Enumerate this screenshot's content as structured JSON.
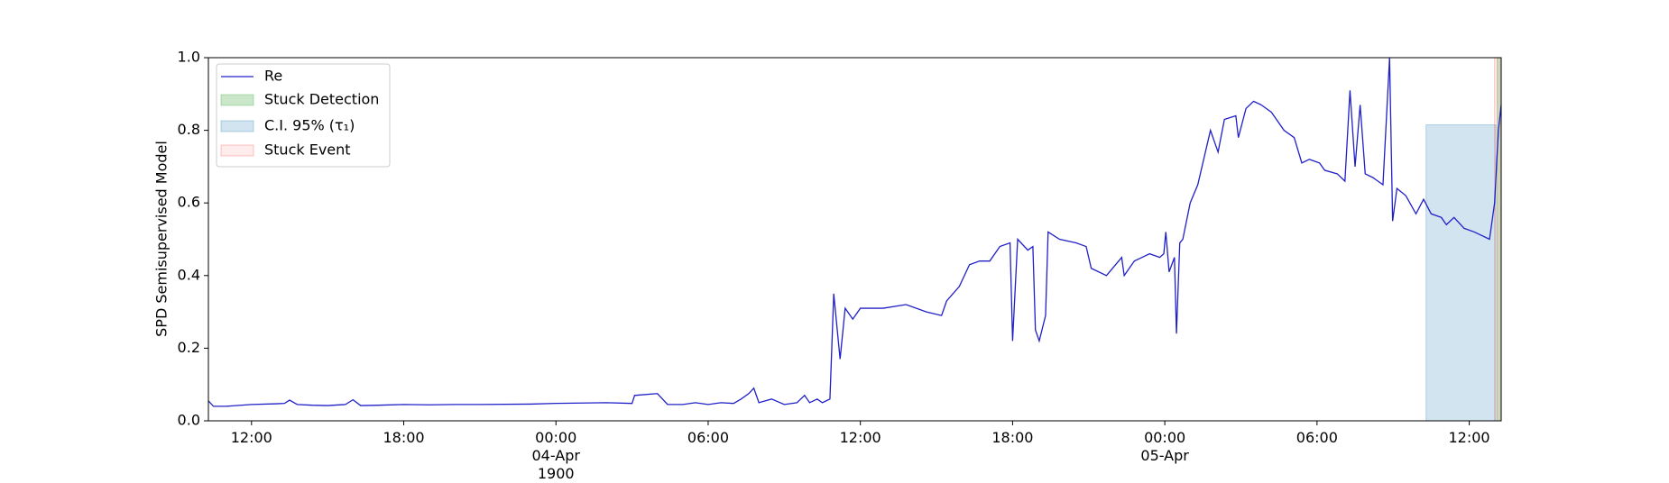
{
  "chart_data": {
    "type": "line",
    "ylabel": "SPD Semisupervised Model",
    "xlim": [
      -13.7,
      37.26
    ],
    "xticks": [
      {
        "value": -12,
        "label": "12:00"
      },
      {
        "value": -6,
        "label": "18:00"
      },
      {
        "value": 0,
        "label": "00:00\n04-Apr\n1900"
      },
      {
        "value": 6,
        "label": "06:00"
      },
      {
        "value": 12,
        "label": "12:00"
      },
      {
        "value": 18,
        "label": "18:00"
      },
      {
        "value": 24,
        "label": "00:00\n05-Apr"
      },
      {
        "value": 30,
        "label": "06:00"
      },
      {
        "value": 36,
        "label": "12:00"
      }
    ],
    "ylim": [
      0,
      1
    ],
    "yticks": [
      {
        "value": 0,
        "label": "0.0"
      },
      0.2,
      0.4,
      0.6,
      0.8,
      {
        "value": 1,
        "label": "1.0"
      }
    ],
    "legend": "upper left",
    "x": [
      -13.7,
      -13.5,
      -13,
      -12,
      -11,
      -10.7,
      -10.5,
      -10.2,
      -9.6,
      -9,
      -8.3,
      -8.0,
      -7.7,
      -7,
      -6,
      -5,
      -4,
      -3,
      -1,
      0,
      2,
      3,
      3.1,
      4,
      4.2,
      4.4,
      5,
      5.5,
      6,
      6.5,
      7,
      7.3,
      7.6,
      7.8,
      8,
      8.5,
      9,
      9.5,
      9.8,
      10,
      10.3,
      10.5,
      10.8,
      10.95,
      11.2,
      11.4,
      11.7,
      12.0,
      12.9,
      13.8,
      14.6,
      15.2,
      15.4,
      15.9,
      16.3,
      16.7,
      17.1,
      17.5,
      17.9,
      18.0,
      18.2,
      18.6,
      18.8,
      18.9,
      19.05,
      19.3,
      19.4,
      19.85,
      20.5,
      20.9,
      21.1,
      21.7,
      22.3,
      22.4,
      22.8,
      23.4,
      23.8,
      23.96,
      24.04,
      24.17,
      24.38,
      24.46,
      24.59,
      24.71,
      25.0,
      25.3,
      25.8,
      26.1,
      26.35,
      26.8,
      26.9,
      27.2,
      27.5,
      27.8,
      28.2,
      28.7,
      29.1,
      29.4,
      29.7,
      30.1,
      30.3,
      30.8,
      31.1,
      31.3,
      31.5,
      31.7,
      31.9,
      32.2,
      32.6,
      32.86,
      32.98,
      33.15,
      33.5,
      33.9,
      34.2,
      34.5,
      34.9,
      35.1,
      35.4,
      35.8,
      36.2,
      36.8,
      37.0,
      37.15,
      37.26
    ],
    "series": [
      {
        "name": "Re",
        "color": "#2020c8",
        "values": [
          0.055,
          0.04,
          0.04,
          0.045,
          0.047,
          0.048,
          0.057,
          0.045,
          0.043,
          0.042,
          0.045,
          0.058,
          0.042,
          0.043,
          0.045,
          0.044,
          0.045,
          0.045,
          0.046,
          0.048,
          0.05,
          0.048,
          0.07,
          0.075,
          0.06,
          0.045,
          0.045,
          0.05,
          0.045,
          0.05,
          0.048,
          0.06,
          0.075,
          0.09,
          0.05,
          0.06,
          0.045,
          0.05,
          0.07,
          0.05,
          0.06,
          0.05,
          0.06,
          0.35,
          0.17,
          0.31,
          0.28,
          0.31,
          0.31,
          0.32,
          0.3,
          0.29,
          0.33,
          0.37,
          0.43,
          0.44,
          0.44,
          0.48,
          0.49,
          0.22,
          0.5,
          0.47,
          0.48,
          0.25,
          0.22,
          0.29,
          0.52,
          0.5,
          0.49,
          0.48,
          0.42,
          0.4,
          0.45,
          0.4,
          0.44,
          0.46,
          0.45,
          0.46,
          0.52,
          0.41,
          0.45,
          0.24,
          0.49,
          0.5,
          0.6,
          0.65,
          0.8,
          0.74,
          0.83,
          0.84,
          0.78,
          0.86,
          0.88,
          0.87,
          0.85,
          0.8,
          0.78,
          0.71,
          0.72,
          0.71,
          0.69,
          0.68,
          0.66,
          0.91,
          0.7,
          0.87,
          0.68,
          0.67,
          0.65,
          1.0,
          0.55,
          0.64,
          0.62,
          0.57,
          0.61,
          0.57,
          0.56,
          0.54,
          0.56,
          0.53,
          0.52,
          0.5,
          0.6,
          0.8,
          0.87
        ]
      }
    ],
    "spans": [
      {
        "name": "Stuck Detection",
        "color": "#2ca02c",
        "x": [
          37.1,
          37.26
        ],
        "y": [
          0,
          1
        ]
      },
      {
        "name": "C.I. 95% (τ₁)",
        "color": "#1f77b4",
        "x": [
          34.3,
          37.05
        ],
        "y": [
          0,
          0.815
        ]
      },
      {
        "name": "Stuck Event",
        "color": "#ff4040",
        "x": [
          37.0,
          37.26
        ],
        "y": [
          0,
          1
        ]
      }
    ]
  }
}
